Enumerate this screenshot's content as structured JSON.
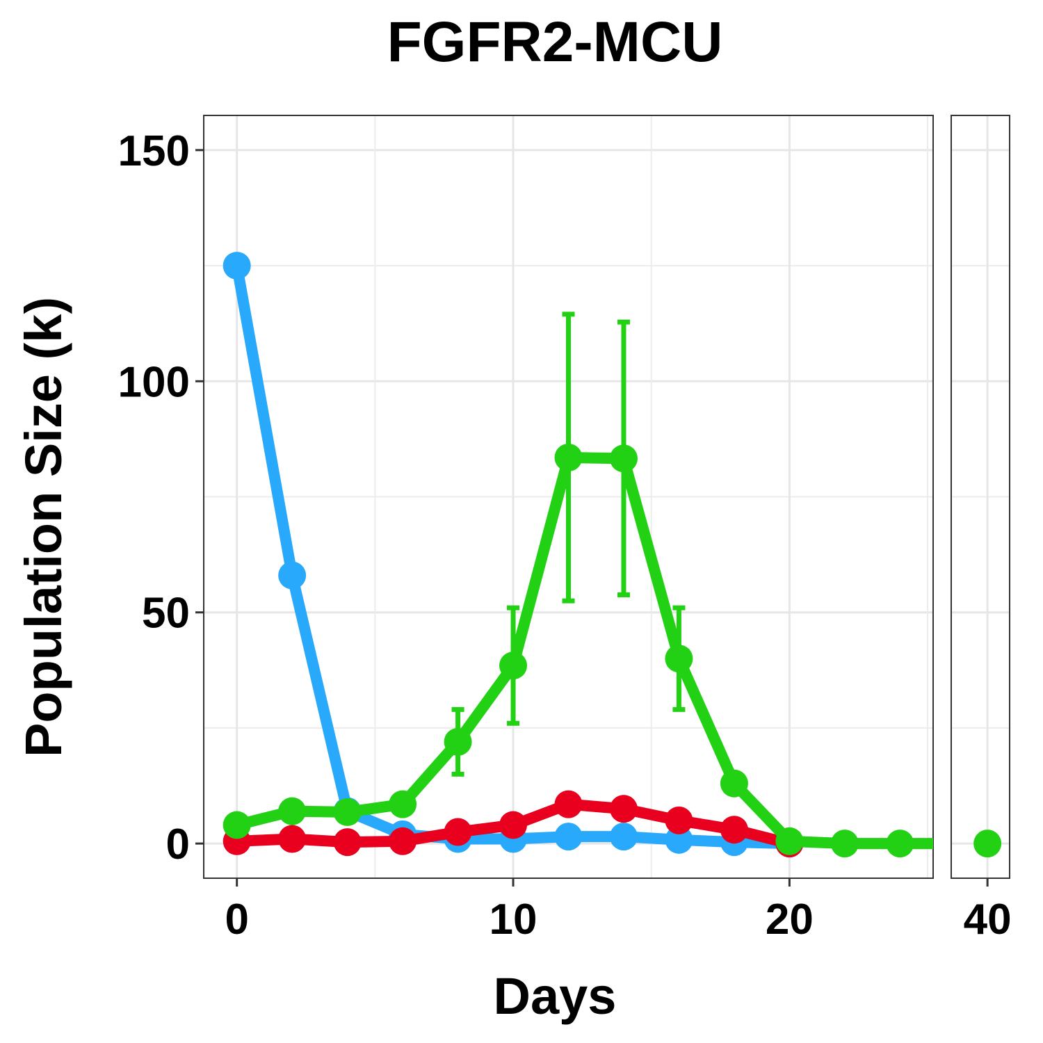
{
  "chart_data": {
    "type": "line",
    "title": "FGFR2-MCU",
    "xlabel": "Days",
    "ylabel": "Population Size (k)",
    "ylim": [
      -7.5,
      157.5
    ],
    "yticks": [
      0,
      50,
      100,
      150
    ],
    "panels": [
      {
        "xlim": [
          -1.2,
          25.2
        ],
        "xticks": [
          0,
          10,
          20
        ]
      },
      {
        "xlim": [
          38.2,
          41.1
        ],
        "xticks": [
          40
        ]
      }
    ],
    "series": [
      {
        "name": "blue",
        "color": "#29a9fb",
        "x": [
          0,
          2,
          4,
          6,
          8,
          10,
          12,
          14,
          16,
          18,
          20
        ],
        "values": [
          125,
          58,
          7,
          2,
          1,
          1,
          1.5,
          1.5,
          0.8,
          0.3,
          0
        ],
        "err": [
          0,
          0,
          0,
          0,
          0,
          0,
          0,
          0,
          0,
          0,
          0
        ]
      },
      {
        "name": "red",
        "color": "#e8001e",
        "x": [
          0,
          2,
          4,
          6,
          8,
          10,
          12,
          14,
          16,
          18,
          20
        ],
        "values": [
          0.5,
          1,
          0.3,
          0.5,
          2.5,
          4,
          8.5,
          7.5,
          5,
          3,
          0
        ],
        "err": [
          0,
          0,
          0,
          0,
          0,
          0,
          1.8,
          0,
          0,
          0,
          0
        ]
      },
      {
        "name": "green",
        "color": "#22d114",
        "x": [
          0,
          2,
          4,
          6,
          8,
          10,
          12,
          14,
          16,
          18,
          20,
          22,
          24,
          40
        ],
        "values": [
          4,
          7,
          6.8,
          8.5,
          22,
          38.5,
          83.5,
          83.3,
          40,
          13,
          0.5,
          0,
          0,
          0
        ],
        "err": [
          0,
          0,
          0,
          0,
          7,
          12.5,
          31,
          29.5,
          11,
          0,
          0,
          0,
          0,
          0
        ]
      }
    ]
  }
}
